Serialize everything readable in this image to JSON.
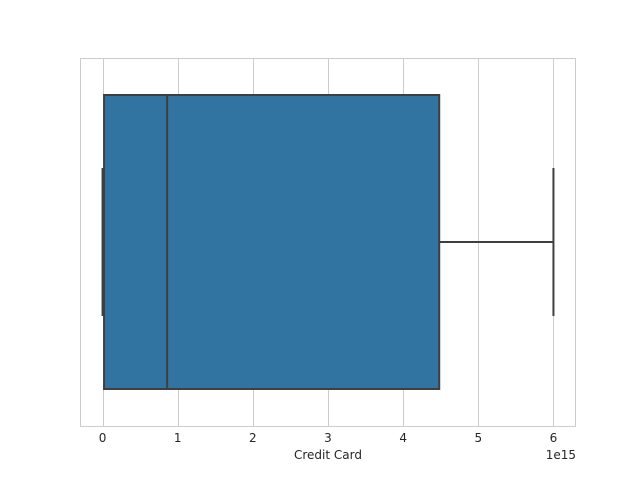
{
  "chart_data": {
    "type": "boxplot",
    "orientation": "horizontal",
    "title": "",
    "xlabel": "Credit Card",
    "ylabel": "",
    "x_offset_label": "1e15",
    "xlim": [
      -0.3,
      6.3
    ],
    "x_ticks": [
      0,
      1,
      2,
      3,
      4,
      5,
      6
    ],
    "x_tick_labels": [
      "0",
      "1",
      "2",
      "3",
      "4",
      "5",
      "6"
    ],
    "grid": true,
    "box": {
      "whisker_low": 0.0,
      "q1": 0.02,
      "median": 0.86,
      "q3": 4.48,
      "whisker_high": 6.0
    },
    "colors": {
      "box_fill": "#3274a1",
      "line": "#3f3f3f",
      "grid": "#cccccc",
      "frame": "#cccccc"
    }
  }
}
